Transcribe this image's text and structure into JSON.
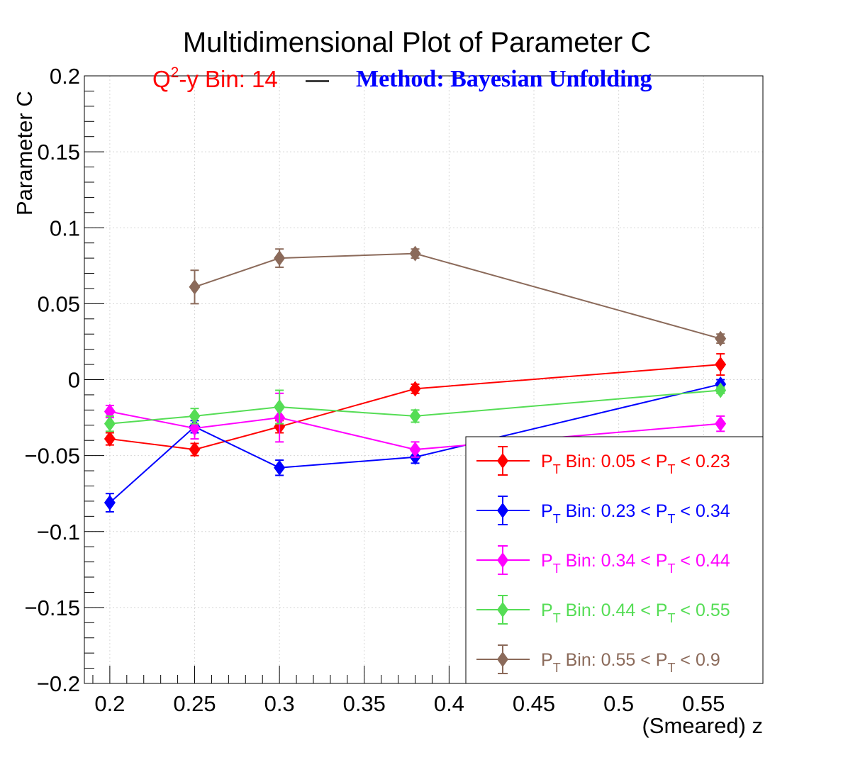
{
  "chart_data": {
    "type": "line",
    "title": "Multidimensional Plot of Parameter C",
    "subtitle": {
      "q2y_prefix": "Q",
      "q2y_sup": "2",
      "q2y_rest": "-y Bin: 14",
      "separator": "—",
      "method": "Method: Bayesian Unfolding",
      "colors": {
        "q2y": "#ff0000",
        "separator": "#000000",
        "method": "#0000ff"
      }
    },
    "xlabel": "(Smeared) z",
    "ylabel": "Parameter C",
    "xlim": [
      0.185,
      0.585
    ],
    "ylim": [
      -0.2,
      0.2
    ],
    "x_ticks": [
      "0.2",
      "0.25",
      "0.3",
      "0.35",
      "0.4",
      "0.45",
      "0.5",
      "0.55"
    ],
    "y_ticks": [
      "0.2",
      "0.15",
      "0.1",
      "0.05",
      "0",
      "−0.05",
      "−0.1",
      "−0.15",
      "−0.2"
    ],
    "grid": true,
    "legend_position": "bottom-right",
    "series": [
      {
        "name": "P_T Bin: 0.05 < P_T < 0.23",
        "legend_parts": [
          "P",
          "T",
          " Bin: 0.05 < P",
          "T",
          " < 0.23"
        ],
        "color": "#ff0000",
        "x": [
          0.2,
          0.25,
          0.3,
          0.38,
          0.56
        ],
        "y": [
          -0.039,
          -0.046,
          -0.031,
          -0.006,
          0.01
        ],
        "err": [
          0.004,
          0.004,
          0.004,
          0.003,
          0.007
        ]
      },
      {
        "name": "P_T Bin: 0.23 < P_T < 0.34",
        "legend_parts": [
          "P",
          "T",
          " Bin: 0.23 < P",
          "T",
          " < 0.34"
        ],
        "color": "#0000ff",
        "x": [
          0.2,
          0.25,
          0.3,
          0.38,
          0.56
        ],
        "y": [
          -0.081,
          -0.031,
          -0.058,
          -0.051,
          -0.003
        ],
        "err": [
          0.006,
          0.004,
          0.005,
          0.004,
          0.003
        ]
      },
      {
        "name": "P_T Bin: 0.34 < P_T < 0.44",
        "legend_parts": [
          "P",
          "T",
          " Bin: 0.34 < P",
          "T",
          " < 0.44"
        ],
        "color": "#ff00ff",
        "x": [
          0.2,
          0.25,
          0.3,
          0.38,
          0.56
        ],
        "y": [
          -0.021,
          -0.032,
          -0.025,
          -0.046,
          -0.029
        ],
        "err": [
          0.004,
          0.007,
          0.016,
          0.005,
          0.005
        ]
      },
      {
        "name": "P_T Bin: 0.44 < P_T < 0.55",
        "legend_parts": [
          "P",
          "T",
          " Bin: 0.44 < P",
          "T",
          " < 0.55"
        ],
        "color": "#55dd55",
        "x": [
          0.2,
          0.25,
          0.3,
          0.38,
          0.56
        ],
        "y": [
          -0.029,
          -0.024,
          -0.018,
          -0.024,
          -0.007
        ],
        "err": [
          0.005,
          0.005,
          0.011,
          0.004,
          0.002
        ]
      },
      {
        "name": "P_T Bin: 0.55 < P_T < 0.9",
        "legend_parts": [
          "P",
          "T",
          " Bin: 0.55 < P",
          "T",
          " < 0.9"
        ],
        "color": "#8b6a5a",
        "x": [
          0.25,
          0.3,
          0.38,
          0.56
        ],
        "y": [
          0.061,
          0.08,
          0.083,
          0.027
        ],
        "err": [
          0.011,
          0.006,
          0.003,
          0.003
        ]
      }
    ]
  }
}
